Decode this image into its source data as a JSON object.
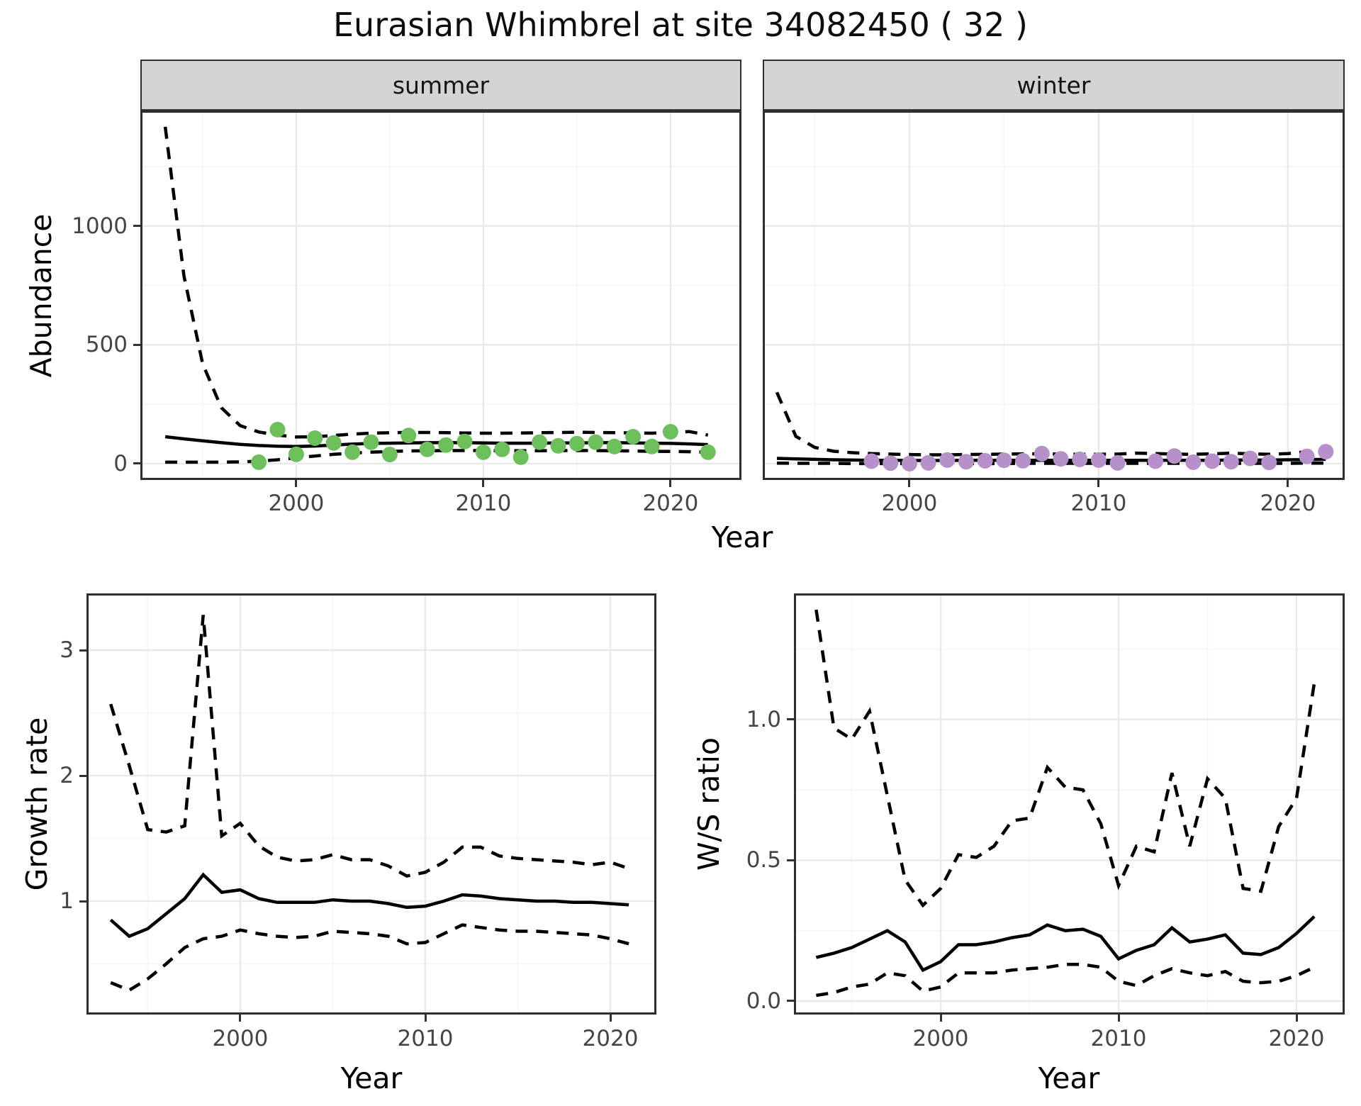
{
  "title": "Eurasian Whimbrel at site 34082450 ( 32 )",
  "top_facets": {
    "ylabel": "Abundance",
    "xlabel": "Year"
  },
  "bottom_left": {
    "ylabel": "Growth rate",
    "xlabel": "Year"
  },
  "bottom_right": {
    "ylabel": "W/S ratio",
    "xlabel": "Year"
  },
  "colors": {
    "summer_point": "#6dbf5c",
    "winter_point": "#b691c9",
    "line": "#000000",
    "grid_major": "#e9e9e9",
    "grid_minor": "#f4f4f4",
    "panel_border": "#2e2e2e",
    "strip_bg": "#d4d4d4",
    "tick_label": "#454545"
  },
  "chart_data": [
    {
      "id": "summer",
      "type": "line+scatter",
      "facet_label": "summer",
      "title": "Abundance, summer facet",
      "xlabel": "Year",
      "ylabel": "Abundance",
      "x_range": [
        1991.67,
        2023.79
      ],
      "y_range": [
        -69,
        1486
      ],
      "x_major": [
        2000,
        2010,
        2020
      ],
      "x_major_labels": [
        "2000",
        "2010",
        "2020"
      ],
      "x_minor": [
        1995,
        2005,
        2015
      ],
      "y_major": [
        0,
        500,
        1000
      ],
      "y_major_labels": [
        "0",
        "500",
        "1000"
      ],
      "y_minor": [
        250,
        750,
        1250
      ],
      "line_years": [
        1993,
        1994,
        1995,
        1996,
        1997,
        1998,
        1999,
        2000,
        2001,
        2002,
        2003,
        2004,
        2005,
        2006,
        2007,
        2008,
        2009,
        2010,
        2011,
        2012,
        2013,
        2014,
        2015,
        2016,
        2017,
        2018,
        2019,
        2020,
        2021,
        2022
      ],
      "fit": [
        113,
        104,
        96,
        88,
        81,
        76,
        73,
        72,
        74,
        78,
        82,
        85,
        86,
        87,
        88,
        88,
        88,
        87,
        86,
        86,
        86,
        87,
        87,
        88,
        88,
        87,
        86,
        85,
        83,
        80
      ],
      "upper": [
        1418,
        790,
        420,
        235,
        160,
        133,
        120,
        112,
        113,
        118,
        124,
        128,
        130,
        131,
        131,
        130,
        129,
        128,
        128,
        129,
        130,
        131,
        132,
        131,
        130,
        129,
        128,
        131,
        135,
        120
      ],
      "lower": [
        6,
        6,
        6,
        6,
        7,
        10,
        16,
        24,
        32,
        39,
        44,
        48,
        51,
        53,
        54,
        55,
        55,
        55,
        54,
        54,
        54,
        55,
        55,
        55,
        54,
        53,
        52,
        51,
        50,
        48
      ],
      "observations": {
        "years": [
          1998,
          1999,
          2000,
          2001,
          2002,
          2003,
          2004,
          2005,
          2006,
          2007,
          2008,
          2009,
          2010,
          2011,
          2012,
          2013,
          2014,
          2015,
          2016,
          2017,
          2018,
          2019,
          2020,
          2022
        ],
        "values": [
          6,
          143,
          39,
          107,
          87,
          48,
          90,
          38,
          118,
          60,
          78,
          93,
          48,
          60,
          27,
          90,
          75,
          84,
          90,
          72,
          113,
          72,
          134,
          48
        ]
      }
    },
    {
      "id": "winter",
      "type": "line+scatter",
      "facet_label": "winter",
      "title": "Abundance, winter facet",
      "xlabel": "Year",
      "ylabel": "Abundance",
      "x_range": [
        1992.25,
        2023.0
      ],
      "y_range": [
        -69,
        1486
      ],
      "x_major": [
        2000,
        2010,
        2020
      ],
      "x_major_labels": [
        "2000",
        "2010",
        "2020"
      ],
      "x_minor": [
        1995,
        2005,
        2015
      ],
      "y_major": [
        0,
        500,
        1000
      ],
      "y_major_labels": [
        "0",
        "500",
        "1000"
      ],
      "y_minor": [
        250,
        750,
        1250
      ],
      "line_years": [
        1993,
        1994,
        1995,
        1996,
        1997,
        1998,
        1999,
        2000,
        2001,
        2002,
        2003,
        2004,
        2005,
        2006,
        2007,
        2008,
        2009,
        2010,
        2011,
        2012,
        2013,
        2014,
        2015,
        2016,
        2017,
        2018,
        2019,
        2020,
        2021,
        2022
      ],
      "fit": [
        22,
        20,
        18,
        16,
        15,
        14,
        14,
        13,
        13,
        13,
        14,
        14,
        14,
        14,
        14,
        14,
        14,
        14,
        14,
        14,
        14,
        14,
        14,
        14,
        15,
        15,
        15,
        16,
        17,
        18
      ],
      "upper": [
        300,
        115,
        68,
        52,
        46,
        42,
        40,
        38,
        37,
        37,
        38,
        39,
        40,
        41,
        41,
        40,
        39,
        39,
        40,
        44,
        42,
        40,
        39,
        41,
        44,
        41,
        39,
        42,
        50,
        58
      ],
      "lower": [
        2,
        1,
        1,
        1,
        0,
        0,
        0,
        0,
        0,
        0,
        0,
        0,
        0,
        1,
        1,
        1,
        1,
        1,
        1,
        1,
        1,
        1,
        1,
        1,
        1,
        1,
        1,
        1,
        2,
        2
      ],
      "observations": {
        "years": [
          1998,
          1999,
          2000,
          2001,
          2002,
          2003,
          2004,
          2005,
          2006,
          2007,
          2008,
          2009,
          2010,
          2011,
          2013,
          2014,
          2015,
          2016,
          2017,
          2018,
          2019,
          2021,
          2022
        ],
        "values": [
          10,
          2,
          0,
          3,
          15,
          8,
          12,
          14,
          12,
          42,
          20,
          18,
          15,
          3,
          10,
          32,
          6,
          10,
          8,
          22,
          5,
          30,
          50
        ]
      }
    },
    {
      "id": "growth",
      "type": "line",
      "facet_label": "",
      "title": "Growth rate",
      "xlabel": "Year",
      "ylabel": "Growth rate",
      "x_range": [
        1991.69,
        2022.49
      ],
      "y_range": [
        0.096,
        3.452
      ],
      "x_major": [
        2000,
        2010,
        2020
      ],
      "x_major_labels": [
        "2000",
        "2010",
        "2020"
      ],
      "x_minor": [
        1995,
        2005,
        2015
      ],
      "y_major": [
        1,
        2,
        3
      ],
      "y_major_labels": [
        "1",
        "2",
        "3"
      ],
      "y_minor": [
        0.5,
        1.5,
        2.5
      ],
      "line_years": [
        1993,
        1994,
        1995,
        1996,
        1997,
        1998,
        1999,
        2000,
        2001,
        2002,
        2003,
        2004,
        2005,
        2006,
        2007,
        2008,
        2009,
        2010,
        2011,
        2012,
        2013,
        2014,
        2015,
        2016,
        2017,
        2018,
        2019,
        2020,
        2021
      ],
      "fit": [
        0.85,
        0.72,
        0.78,
        0.9,
        1.02,
        1.21,
        1.07,
        1.09,
        1.02,
        0.99,
        0.99,
        0.99,
        1.01,
        1.0,
        1.0,
        0.98,
        0.95,
        0.96,
        1.0,
        1.05,
        1.04,
        1.02,
        1.01,
        1.0,
        1.0,
        0.99,
        0.99,
        0.98,
        0.97
      ],
      "upper": [
        2.57,
        2.08,
        1.57,
        1.55,
        1.6,
        3.28,
        1.52,
        1.62,
        1.44,
        1.35,
        1.32,
        1.33,
        1.37,
        1.33,
        1.33,
        1.28,
        1.2,
        1.23,
        1.31,
        1.43,
        1.43,
        1.36,
        1.34,
        1.33,
        1.32,
        1.31,
        1.29,
        1.31,
        1.26
      ],
      "lower": [
        0.35,
        0.29,
        0.38,
        0.5,
        0.63,
        0.7,
        0.72,
        0.77,
        0.74,
        0.72,
        0.71,
        0.72,
        0.76,
        0.75,
        0.74,
        0.72,
        0.66,
        0.67,
        0.74,
        0.81,
        0.79,
        0.77,
        0.76,
        0.76,
        0.75,
        0.74,
        0.73,
        0.7,
        0.66
      ]
    },
    {
      "id": "ws",
      "type": "line",
      "facet_label": "",
      "title": "W/S ratio",
      "xlabel": "Year",
      "ylabel": "W/S ratio",
      "x_range": [
        1991.75,
        2022.71
      ],
      "y_range": [
        -0.048,
        1.448
      ],
      "x_major": [
        2000,
        2010,
        2020
      ],
      "x_major_labels": [
        "2000",
        "2010",
        "2020"
      ],
      "x_minor": [
        1995,
        2005,
        2015
      ],
      "y_major": [
        0.0,
        0.5,
        1.0
      ],
      "y_major_labels": [
        "0.0",
        "0.5",
        "1.0"
      ],
      "y_minor": [
        0.25,
        0.75,
        1.25
      ],
      "line_years": [
        1993,
        1994,
        1995,
        1996,
        1997,
        1998,
        1999,
        2000,
        2001,
        2002,
        2003,
        2004,
        2005,
        2006,
        2007,
        2008,
        2009,
        2010,
        2011,
        2012,
        2013,
        2014,
        2015,
        2016,
        2017,
        2018,
        2019,
        2020,
        2021
      ],
      "fit": [
        0.155,
        0.17,
        0.19,
        0.22,
        0.25,
        0.21,
        0.11,
        0.14,
        0.2,
        0.2,
        0.21,
        0.225,
        0.235,
        0.27,
        0.25,
        0.255,
        0.23,
        0.15,
        0.18,
        0.2,
        0.26,
        0.21,
        0.22,
        0.235,
        0.17,
        0.165,
        0.19,
        0.24,
        0.3
      ],
      "upper": [
        1.39,
        0.97,
        0.93,
        1.03,
        0.73,
        0.43,
        0.34,
        0.4,
        0.52,
        0.51,
        0.55,
        0.64,
        0.65,
        0.83,
        0.76,
        0.75,
        0.63,
        0.41,
        0.55,
        0.53,
        0.81,
        0.55,
        0.79,
        0.72,
        0.4,
        0.39,
        0.62,
        0.72,
        1.13
      ],
      "lower": [
        0.02,
        0.03,
        0.05,
        0.06,
        0.1,
        0.09,
        0.035,
        0.05,
        0.1,
        0.1,
        0.1,
        0.11,
        0.115,
        0.12,
        0.13,
        0.13,
        0.12,
        0.07,
        0.055,
        0.09,
        0.115,
        0.1,
        0.09,
        0.105,
        0.07,
        0.065,
        0.07,
        0.09,
        0.12
      ]
    }
  ]
}
